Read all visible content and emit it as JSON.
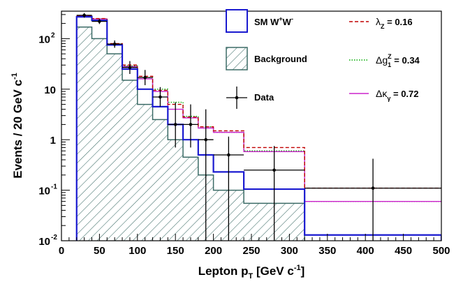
{
  "chart_data": {
    "type": "histogram",
    "x_label_main": "Lepton p",
    "x_label_sub": "T",
    "x_label_unit": " [GeV c",
    "x_label_unit_sup": "-1",
    "x_label_end": "]",
    "y_label_main": "Events / 20 GeV c",
    "y_label_sup": "-1",
    "xlim": [
      0,
      500
    ],
    "ylim": [
      0.01,
      350
    ],
    "y_scale": "log",
    "x_ticks": [
      "0",
      "50",
      "100",
      "150",
      "200",
      "250",
      "300",
      "350",
      "400",
      "450",
      "500"
    ],
    "y_ticks": [
      {
        "value": 0.01,
        "base": "10",
        "exp": "-2"
      },
      {
        "value": 0.1,
        "base": "10",
        "exp": "-1"
      },
      {
        "value": 1,
        "base": "1",
        "exp": ""
      },
      {
        "value": 10,
        "base": "10",
        "exp": ""
      },
      {
        "value": 100,
        "base": "10",
        "exp": "2"
      }
    ],
    "bin_edges": [
      20,
      40,
      60,
      80,
      100,
      120,
      140,
      160,
      180,
      200,
      240,
      320,
      500
    ],
    "series": [
      {
        "name": "SM W+W-",
        "style": "filled-blue",
        "color": "#1a1ad0",
        "values": [
          270,
          230,
          75,
          25,
          10,
          4.5,
          2.0,
          1.0,
          0.5,
          0.23,
          0.105,
          0.013
        ]
      },
      {
        "name": "Background",
        "style": "hatched",
        "color": "#3b6b66",
        "values": [
          170,
          100,
          50,
          15,
          5,
          2.5,
          1.0,
          0.45,
          0.2,
          0.1,
          0.055,
          0.0
        ]
      },
      {
        "name": "λZ = 0.16",
        "style": "dashed",
        "color": "#c00000",
        "values": [
          285,
          250,
          80,
          30,
          18,
          9.5,
          5.0,
          2.8,
          1.8,
          1.5,
          0.7,
          0.11
        ]
      },
      {
        "name": "Δg1Z = 0.34",
        "style": "dotted",
        "color": "#00aa00",
        "values": [
          285,
          248,
          78,
          29,
          17,
          10,
          5.5,
          2.9,
          1.8,
          1.4,
          0.6,
          0.06
        ]
      },
      {
        "name": "Δκγ = 0.72",
        "style": "solid",
        "color": "#cc22cc",
        "values": [
          280,
          245,
          78,
          28,
          16,
          9,
          4.0,
          2.7,
          1.7,
          1.4,
          0.58,
          0.06
        ]
      }
    ],
    "data_points": [
      {
        "x": 30,
        "y": 290,
        "xerr": 10,
        "ylo": 260,
        "yhi": 320
      },
      {
        "x": 50,
        "y": 220,
        "xerr": 10,
        "ylo": 195,
        "yhi": 245
      },
      {
        "x": 70,
        "y": 78,
        "xerr": 10,
        "ylo": 66,
        "yhi": 92
      },
      {
        "x": 90,
        "y": 27,
        "xerr": 10,
        "ylo": 20,
        "yhi": 36
      },
      {
        "x": 110,
        "y": 17,
        "xerr": 10,
        "ylo": 12,
        "yhi": 24
      },
      {
        "x": 130,
        "y": 7,
        "xerr": 10,
        "ylo": 4.5,
        "yhi": 11
      },
      {
        "x": 150,
        "y": 2.0,
        "xerr": 10,
        "ylo": 0.7,
        "yhi": 5.5
      },
      {
        "x": 170,
        "y": 2.0,
        "xerr": 10,
        "ylo": 0.7,
        "yhi": 5.0
      },
      {
        "x": 190,
        "y": 1.0,
        "xerr": 10,
        "ylo": 0.01,
        "yhi": 4.0
      },
      {
        "x": 220,
        "y": 0.5,
        "xerr": 20,
        "ylo": 0.01,
        "yhi": 1.15
      },
      {
        "x": 280,
        "y": 0.25,
        "xerr": 40,
        "ylo": 0.01,
        "yhi": 0.75
      },
      {
        "x": 410,
        "y": 0.11,
        "xerr": 90,
        "ylo": 0.01,
        "yhi": 0.42
      }
    ],
    "legend": [
      {
        "label": "SM W",
        "sup": "+",
        "label2": "W",
        "sup2": "-",
        "kind": "box-blue"
      },
      {
        "label": "Background",
        "kind": "box-hatched"
      },
      {
        "label": "Data",
        "kind": "marker"
      },
      {
        "label_greek": "λ",
        "label_sub": "Z",
        "label_rest": "= 0.16",
        "kind": "dashed-red"
      },
      {
        "label_greek": "Δg",
        "label_sub": "1",
        "label_sup": "Z",
        "label_rest": "= 0.34",
        "kind": "dotted-green"
      },
      {
        "label_greek": "Δκ",
        "label_sub": "γ",
        "label_rest": "= 0.72",
        "kind": "solid-magenta"
      }
    ]
  }
}
